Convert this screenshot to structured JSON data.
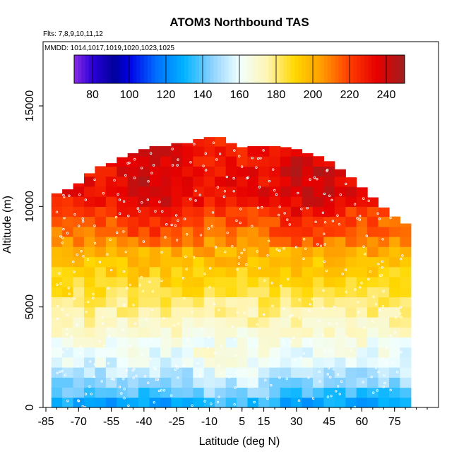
{
  "chart_data": {
    "type": "heatmap",
    "title": "ATOM3 Northbound TAS",
    "flights_note": "Flts: 7,8,9,10,11,12",
    "dates_note": "MMDD: 1014,1017,1019,1020,1023,1025",
    "xlabel": "Latitude (deg N)",
    "ylabel": "Altitude (m)",
    "xlim": [
      -85,
      90
    ],
    "ylim": [
      0,
      17500
    ],
    "x_ticks": [
      -85,
      -70,
      -55,
      -40,
      -25,
      -10,
      5,
      15,
      30,
      45,
      60,
      75
    ],
    "y_ticks": [
      0,
      5000,
      10000,
      15000
    ],
    "colorbar": {
      "min": 70,
      "max": 250,
      "ticks": [
        80,
        100,
        120,
        140,
        160,
        180,
        200,
        220,
        240
      ],
      "stops": [
        {
          "v": 70,
          "c": "#8a2be2"
        },
        {
          "v": 80,
          "c": "#2a00d8"
        },
        {
          "v": 92,
          "c": "#00009a"
        },
        {
          "v": 100,
          "c": "#0000e6"
        },
        {
          "v": 115,
          "c": "#0070ff"
        },
        {
          "v": 130,
          "c": "#00b4ff"
        },
        {
          "v": 145,
          "c": "#8cd2ff"
        },
        {
          "v": 160,
          "c": "#f0ffff"
        },
        {
          "v": 175,
          "c": "#fff5b4"
        },
        {
          "v": 190,
          "c": "#ffd800"
        },
        {
          "v": 205,
          "c": "#ff9c00"
        },
        {
          "v": 220,
          "c": "#ff3c00"
        },
        {
          "v": 235,
          "c": "#e60000"
        },
        {
          "v": 250,
          "c": "#a01e1e"
        }
      ]
    },
    "tas_profile": {
      "altitude_m": [
        250,
        750,
        1250,
        1750,
        2250,
        2750,
        3250,
        3750,
        4250,
        4750,
        5250,
        5750,
        6250,
        6750,
        7250,
        7750,
        8250,
        8750,
        9250,
        9750,
        10250,
        10750,
        11250,
        11750,
        12250,
        12750,
        13250
      ],
      "tas_ms": [
        128,
        138,
        146,
        152,
        157,
        161,
        165,
        169,
        173,
        177,
        181,
        185,
        189,
        193,
        197,
        201,
        206,
        211,
        216,
        222,
        228,
        232,
        232,
        231,
        229,
        228,
        228
      ]
    },
    "latitude_coverage": {
      "lat_deg": [
        -80,
        -75,
        -70,
        -65,
        -60,
        -55,
        -50,
        -45,
        -40,
        -35,
        -30,
        -25,
        -20,
        -15,
        -10,
        -5,
        0,
        5,
        10,
        15,
        20,
        25,
        30,
        35,
        40,
        45,
        50,
        55,
        60,
        65,
        70,
        75,
        80
      ],
      "max_altitude_m": [
        10500,
        10700,
        11000,
        11500,
        11900,
        12000,
        12300,
        12500,
        12700,
        12900,
        12900,
        13000,
        13000,
        13200,
        13300,
        13300,
        13000,
        12800,
        12900,
        12900,
        12900,
        12800,
        12700,
        12500,
        12400,
        12100,
        11700,
        11300,
        10800,
        10300,
        9800,
        9400,
        9000
      ]
    }
  }
}
